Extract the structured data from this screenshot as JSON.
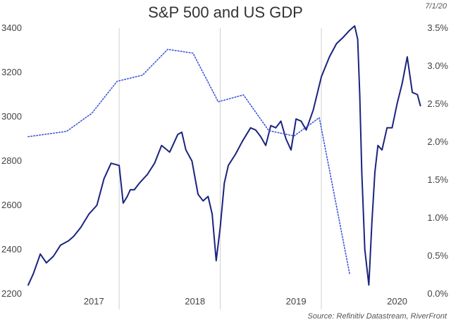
{
  "chart_data": {
    "type": "line",
    "title": "S&P 500 and US GDP",
    "date_label": "7/1/20",
    "source": "Source: Refinitiv Datastream, RiverFront",
    "x_range": [
      2016.6,
      2020.49
    ],
    "x_ticks": [
      {
        "label": "2017",
        "x": 2017.0
      },
      {
        "label": "2018",
        "x": 2018.0
      },
      {
        "label": "2019",
        "x": 2019.0
      },
      {
        "label": "2020",
        "x": 2020.0
      }
    ],
    "x_dividers": [
      2017.5,
      2018.5,
      2019.5
    ],
    "y_left": {
      "range": [
        2200,
        3400
      ],
      "ticks": [
        2200,
        2400,
        2600,
        2800,
        3000,
        3200,
        3400
      ]
    },
    "y_right": {
      "range": [
        0,
        3.5
      ],
      "ticks": [
        0,
        0.5,
        1.0,
        1.5,
        2.0,
        2.5,
        3.0,
        3.5
      ],
      "tick_labels": [
        "0.0%",
        "0.5%",
        "1.0%",
        "1.5%",
        "2.0%",
        "2.5%",
        "3.0%",
        "3.5%"
      ]
    },
    "series": [
      {
        "name": "S&P 500",
        "axis": "left",
        "style": "solid",
        "color": "#1a237e",
        "x": [
          2016.6,
          2016.65,
          2016.72,
          2016.78,
          2016.85,
          2016.92,
          2017.0,
          2017.05,
          2017.12,
          2017.2,
          2017.28,
          2017.35,
          2017.42,
          2017.5,
          2017.54,
          2017.58,
          2017.61,
          2017.65,
          2017.7,
          2017.78,
          2017.85,
          2017.92,
          2018.0,
          2018.08,
          2018.12,
          2018.16,
          2018.22,
          2018.28,
          2018.33,
          2018.38,
          2018.42,
          2018.46,
          2018.5,
          2018.54,
          2018.58,
          2018.65,
          2018.72,
          2018.8,
          2018.85,
          2018.9,
          2018.95,
          2019.0,
          2019.05,
          2019.1,
          2019.15,
          2019.2,
          2019.25,
          2019.3,
          2019.35,
          2019.42,
          2019.5,
          2019.58,
          2019.65,
          2019.72,
          2019.78,
          2019.83,
          2019.86,
          2019.88,
          2019.9,
          2019.93,
          2019.97,
          2020.0,
          2020.03,
          2020.06,
          2020.1,
          2020.15,
          2020.2,
          2020.25,
          2020.3,
          2020.35,
          2020.4,
          2020.45,
          2020.48
        ],
        "values": [
          2240,
          2290,
          2380,
          2340,
          2370,
          2420,
          2440,
          2460,
          2500,
          2560,
          2600,
          2720,
          2790,
          2780,
          2610,
          2640,
          2670,
          2670,
          2700,
          2740,
          2790,
          2870,
          2840,
          2920,
          2930,
          2850,
          2800,
          2650,
          2620,
          2640,
          2560,
          2350,
          2500,
          2700,
          2780,
          2830,
          2890,
          2950,
          2940,
          2910,
          2870,
          2960,
          2950,
          2980,
          2900,
          2850,
          2990,
          2980,
          2940,
          3030,
          3180,
          3270,
          3330,
          3360,
          3390,
          3410,
          3350,
          3100,
          2750,
          2400,
          2240,
          2520,
          2750,
          2870,
          2850,
          2950,
          2950,
          3060,
          3150,
          3270,
          3110,
          3100,
          3050
        ]
      },
      {
        "name": "US GDP",
        "axis": "right",
        "style": "dotted",
        "color": "#3b55d9",
        "x": [
          2016.6,
          2016.98,
          2017.23,
          2017.48,
          2017.73,
          2017.98,
          2018.23,
          2018.48,
          2018.73,
          2018.98,
          2019.23,
          2019.48,
          2019.78
        ],
        "values": [
          2.07,
          2.14,
          2.38,
          2.8,
          2.88,
          3.22,
          3.17,
          2.53,
          2.62,
          2.15,
          2.08,
          2.32,
          0.26
        ]
      }
    ]
  }
}
